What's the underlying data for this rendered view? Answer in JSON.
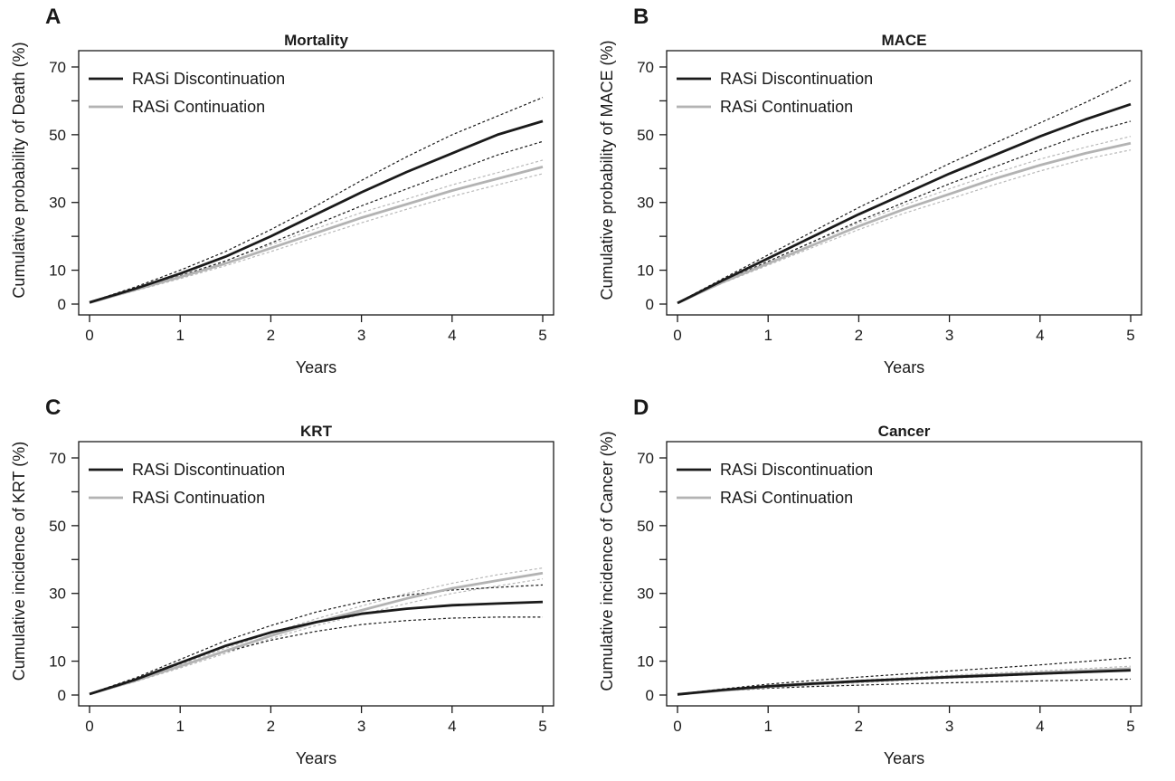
{
  "panels": [
    {
      "letter": "A",
      "chart_data": {
        "type": "line",
        "title": "Mortality",
        "xlabel": "Years",
        "ylabel": "Cumulative probability of Death (%)",
        "xlim": [
          0,
          5
        ],
        "ylim": [
          0,
          70
        ],
        "xticks": [
          0,
          1,
          2,
          3,
          4,
          5
        ],
        "yticks": [
          0,
          10,
          30,
          50,
          70
        ],
        "yticks_minor": [
          20,
          40,
          60
        ],
        "legend_position": "top-left",
        "x": [
          0,
          0.5,
          1,
          1.5,
          2,
          2.5,
          3,
          3.5,
          4,
          4.5,
          5
        ],
        "series": [
          {
            "name": "RASi Discontinuation",
            "color": "#1a1a1a",
            "style": "solid",
            "values": [
              0.5,
              4.5,
              9,
              14,
              20,
              26.5,
              33,
              39,
              44.5,
              50,
              54
            ],
            "ci_lower": [
              0.4,
              4.2,
              8.3,
              12.7,
              18,
              23.5,
              29,
              34,
              39,
              44,
              48
            ],
            "ci_upper": [
              0.6,
              5,
              10,
              15.5,
              22,
              29,
              36.5,
              43.5,
              50,
              55.5,
              61
            ]
          },
          {
            "name": "RASi Continuation",
            "color": "#b3b3b3",
            "style": "solid",
            "values": [
              0.4,
              4.2,
              8,
              12,
              16.5,
              21,
              25.5,
              29.5,
              33.5,
              37,
              40.5
            ],
            "ci_lower": [
              0.3,
              3.9,
              7.5,
              11.3,
              15.5,
              19.8,
              24,
              28,
              31.8,
              35.2,
              38.5
            ],
            "ci_upper": [
              0.5,
              4.5,
              8.5,
              12.8,
              17.5,
              22.3,
              27,
              31,
              35.2,
              38.8,
              42.5
            ]
          }
        ]
      }
    },
    {
      "letter": "B",
      "chart_data": {
        "type": "line",
        "title": "MACE",
        "xlabel": "Years",
        "ylabel": "Cumulative probability of MACE (%)",
        "xlim": [
          0,
          5
        ],
        "ylim": [
          0,
          70
        ],
        "xticks": [
          0,
          1,
          2,
          3,
          4,
          5
        ],
        "yticks": [
          0,
          10,
          30,
          50,
          70
        ],
        "yticks_minor": [
          20,
          40,
          60
        ],
        "legend_position": "top-left",
        "x": [
          0,
          0.5,
          1,
          1.5,
          2,
          2.5,
          3,
          3.5,
          4,
          4.5,
          5
        ],
        "series": [
          {
            "name": "RASi Discontinuation",
            "color": "#1a1a1a",
            "style": "solid",
            "values": [
              0.3,
              7,
              13.5,
              20,
              26.5,
              32.5,
              38.5,
              44,
              49.5,
              54.5,
              59
            ],
            "ci_lower": [
              0.3,
              6.6,
              12.6,
              18.5,
              24.5,
              30,
              35.5,
              40.5,
              45.5,
              50.3,
              54
            ],
            "ci_upper": [
              0.4,
              7.5,
              14.5,
              21.5,
              28.5,
              35,
              41.5,
              47.5,
              53.5,
              59.5,
              66
            ]
          },
          {
            "name": "RASi Continuation",
            "color": "#b3b3b3",
            "style": "solid",
            "values": [
              0.3,
              6.5,
              12,
              17.5,
              23,
              28,
              32.5,
              37,
              41,
              44.5,
              47.5
            ],
            "ci_lower": [
              0.3,
              6.2,
              11.5,
              16.8,
              22,
              26.8,
              31,
              35.3,
              39.3,
              42.8,
              45.5
            ],
            "ci_upper": [
              0.4,
              6.8,
              12.6,
              18.3,
              24,
              29.2,
              34,
              38.6,
              42.8,
              46.3,
              49.5
            ]
          }
        ]
      }
    },
    {
      "letter": "C",
      "chart_data": {
        "type": "line",
        "title": "KRT",
        "xlabel": "Years",
        "ylabel": "Cumulative incidence of KRT (%)",
        "xlim": [
          0,
          5
        ],
        "ylim": [
          0,
          70
        ],
        "xticks": [
          0,
          1,
          2,
          3,
          4,
          5
        ],
        "yticks": [
          0,
          10,
          30,
          50,
          70
        ],
        "yticks_minor": [
          20,
          40,
          60
        ],
        "legend_position": "top-left",
        "x": [
          0,
          0.5,
          1,
          1.5,
          2,
          2.5,
          3,
          3.5,
          4,
          4.5,
          5
        ],
        "series": [
          {
            "name": "RASi Discontinuation",
            "color": "#1a1a1a",
            "style": "solid",
            "values": [
              0.3,
              4.5,
              9.5,
              14.5,
              18.5,
              21.5,
              24,
              25.5,
              26.5,
              27,
              27.5
            ],
            "ci_lower": [
              0.2,
              4,
              8.5,
              12.8,
              16.2,
              18.8,
              20.8,
              22,
              22.7,
              23,
              23
            ],
            "ci_upper": [
              0.4,
              5,
              10.5,
              16,
              20.5,
              24.5,
              27.5,
              29.5,
              31,
              31.8,
              32.5
            ]
          },
          {
            "name": "RASi Continuation",
            "color": "#b3b3b3",
            "style": "solid",
            "values": [
              0.3,
              4.2,
              8.5,
              13,
              17.5,
              21.5,
              25,
              28.5,
              31.5,
              33.8,
              36
            ],
            "ci_lower": [
              0.2,
              3.9,
              8,
              12.3,
              16.7,
              20.5,
              23.8,
              27,
              30,
              32.2,
              34.3
            ],
            "ci_upper": [
              0.4,
              4.5,
              9,
              13.8,
              18.3,
              22.5,
              26.3,
              30,
              33,
              35.5,
              37.5
            ]
          }
        ]
      }
    },
    {
      "letter": "D",
      "chart_data": {
        "type": "line",
        "title": "Cancer",
        "xlabel": "Years",
        "ylabel": "Cumulative incidence of Cancer (%)",
        "xlim": [
          0,
          5
        ],
        "ylim": [
          0,
          70
        ],
        "xticks": [
          0,
          1,
          2,
          3,
          4,
          5
        ],
        "yticks": [
          0,
          10,
          30,
          50,
          70
        ],
        "yticks_minor": [
          20,
          40,
          60
        ],
        "legend_position": "top-left",
        "x": [
          0,
          0.5,
          1,
          1.5,
          2,
          2.5,
          3,
          3.5,
          4,
          4.5,
          5
        ],
        "series": [
          {
            "name": "RASi Discontinuation",
            "color": "#1a1a1a",
            "style": "solid",
            "values": [
              0.2,
              1.5,
              2.6,
              3.4,
              4.1,
              4.7,
              5.3,
              5.8,
              6.3,
              6.8,
              7.3
            ],
            "ci_lower": [
              0.1,
              1.2,
              2,
              2.5,
              2.9,
              3.3,
              3.6,
              3.9,
              4.2,
              4.4,
              4.7
            ],
            "ci_upper": [
              0.3,
              1.8,
              3.2,
              4.3,
              5.3,
              6.2,
              7.1,
              8,
              8.9,
              9.9,
              11
            ]
          },
          {
            "name": "RASi Continuation",
            "color": "#b3b3b3",
            "style": "solid",
            "values": [
              0.2,
              1.3,
              2.4,
              3.2,
              4,
              4.7,
              5.4,
              6,
              6.6,
              7.2,
              7.8
            ],
            "ci_lower": [
              0.1,
              1.2,
              2.2,
              2.9,
              3.6,
              4.3,
              5,
              5.5,
              6.1,
              6.6,
              7.1
            ],
            "ci_upper": [
              0.3,
              1.4,
              2.6,
              3.5,
              4.4,
              5.1,
              5.8,
              6.5,
              7.1,
              7.8,
              8.5
            ]
          }
        ]
      }
    }
  ]
}
